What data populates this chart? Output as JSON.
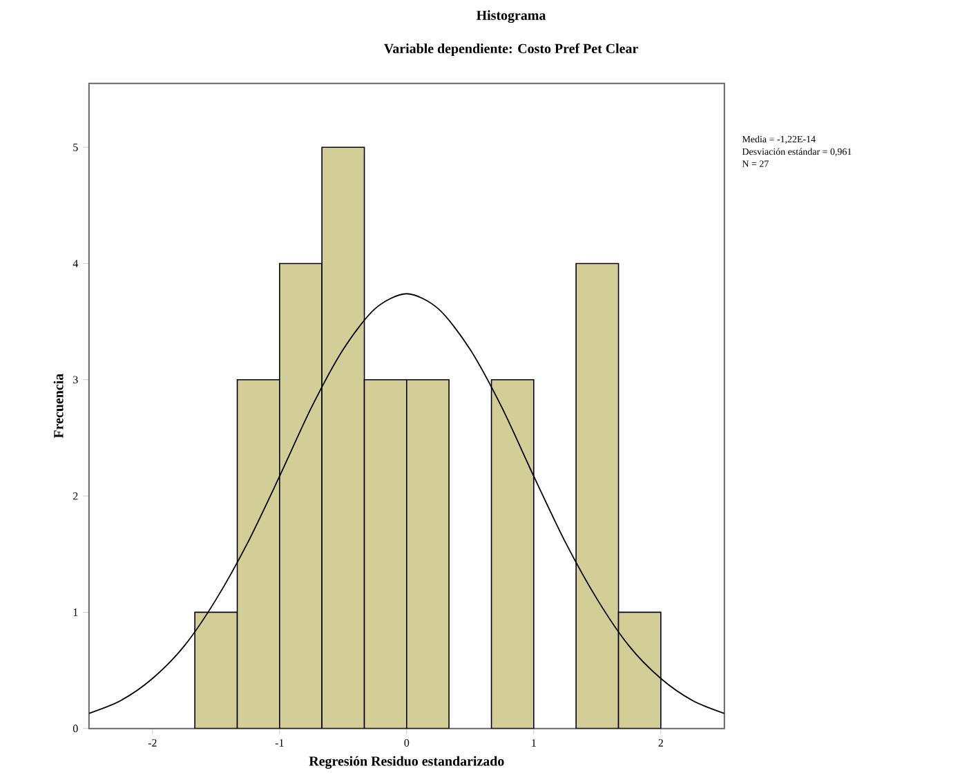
{
  "chart_data": {
    "type": "histogram",
    "title": "Histograma",
    "subtitle": "Variable dependiente: Costo Pref Pet Clear",
    "xlabel": "Regresión Residuo estandarizado",
    "ylabel": "Frecuencia",
    "bins": [
      -1.667,
      -1.333,
      -1,
      -0.667,
      -0.333,
      0,
      0.333,
      0.667,
      1,
      1.333,
      1.667,
      2
    ],
    "values": [
      1,
      3,
      4,
      5,
      3,
      3,
      0,
      3,
      0,
      4,
      1
    ],
    "color": "#d3cd98",
    "series": [
      {
        "type": "line",
        "color": "#000000",
        "x": [
          -2.5,
          -2.25,
          -2,
          -1.75,
          -1.5,
          -1.25,
          -1,
          -0.75,
          -0.5,
          -0.25,
          0,
          0.25,
          0.5,
          0.75,
          1,
          1.25,
          1.5,
          1.75,
          2,
          2.25,
          2.5
        ],
        "values": [
          0.13,
          0.24,
          0.43,
          0.71,
          1.11,
          1.6,
          2.17,
          2.76,
          3.26,
          3.61,
          3.74,
          3.61,
          3.26,
          2.76,
          2.17,
          1.6,
          1.11,
          0.71,
          0.43,
          0.24,
          0.13
        ]
      }
    ],
    "xlim": [
      -2.5,
      2.5
    ],
    "ylim": [
      0,
      5.55
    ],
    "xticks": [
      -2,
      -1,
      0,
      1,
      2
    ],
    "yticks": [
      0,
      1,
      2,
      3,
      4,
      5
    ],
    "annotations": [
      "Media = -1,22E-14",
      "Desviación estándar = 0,961",
      "N = 27"
    ],
    "grid": false
  }
}
